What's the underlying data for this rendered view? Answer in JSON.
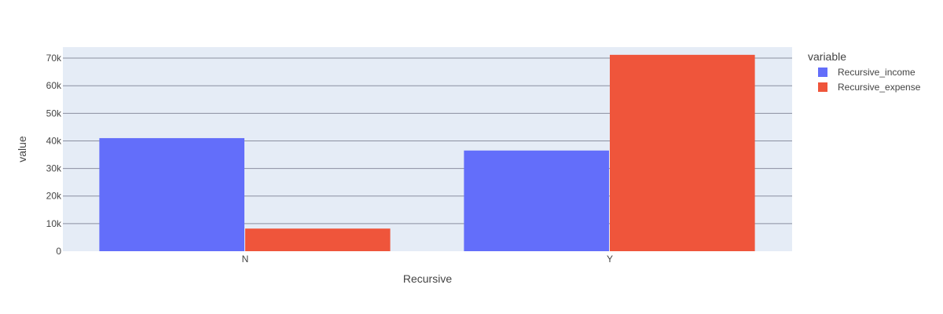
{
  "chart_data": {
    "type": "bar",
    "barmode": "group",
    "categories": [
      "N",
      "Y"
    ],
    "series": [
      {
        "name": "Recursive_income",
        "values": [
          41000,
          36500
        ],
        "color": "#636EFA"
      },
      {
        "name": "Recursive_expense",
        "values": [
          8200,
          71200
        ],
        "color": "#EF553B"
      }
    ],
    "xlabel": "Recursive",
    "ylabel": "value",
    "ylim": [
      0,
      74000
    ],
    "yticks": [
      0,
      10000,
      20000,
      30000,
      40000,
      50000,
      60000,
      70000
    ],
    "ytick_labels": [
      "0",
      "10k",
      "20k",
      "30k",
      "40k",
      "50k",
      "60k",
      "70k"
    ],
    "legend_title": "variable",
    "legend_position": "right",
    "grid": true,
    "plot_background": "#E5ECF6",
    "grid_color": "#8a8fa0"
  }
}
